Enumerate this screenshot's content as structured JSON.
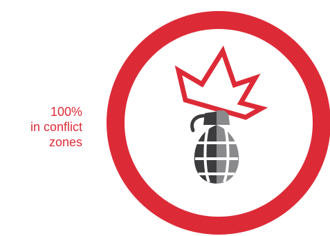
{
  "stat": {
    "value": "100%",
    "line2": "in conflict",
    "line3": "zones"
  },
  "colors": {
    "accent": "#dc2b37",
    "icon_dark": "#3c3c3e",
    "icon_light": "#8a8a8c",
    "background": "#ffffff"
  },
  "icons": {
    "ring": "circle-ring",
    "burst": "explosion-burst-icon",
    "grenade": "grenade-icon"
  }
}
